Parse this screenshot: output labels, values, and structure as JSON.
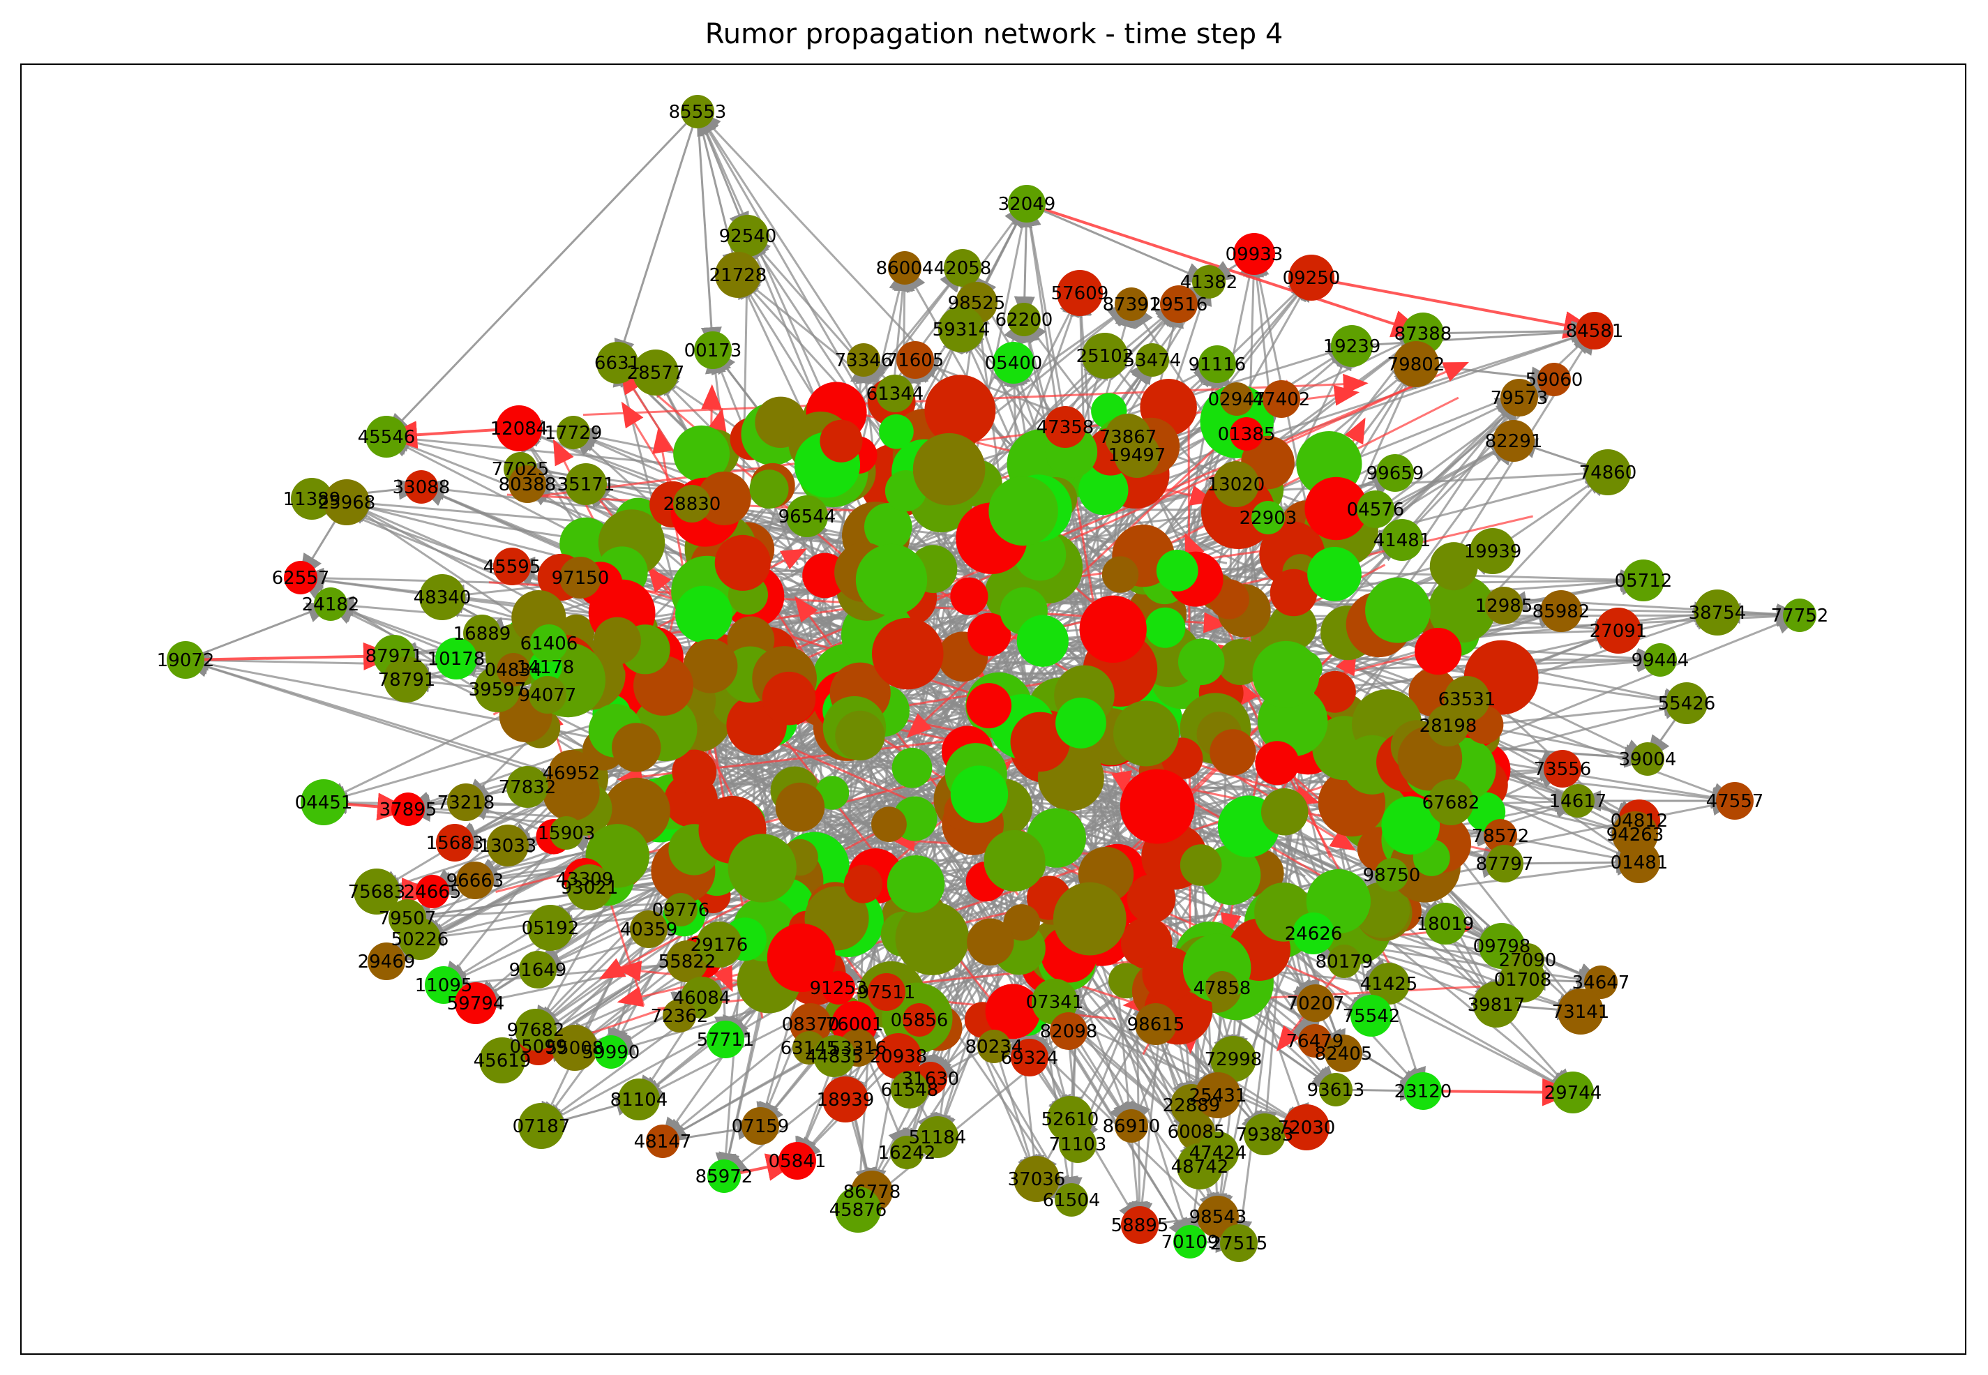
{
  "title": "Rumor propagation network - time step 4",
  "colors": {
    "edge": "#8c8c8c",
    "edge_active": "#ff3b3b",
    "frame": "#000000"
  },
  "node_palette": [
    "#16e00b",
    "#3fc005",
    "#5ea000",
    "#6f8c00",
    "#7f7a00",
    "#955f00",
    "#b34700",
    "#d32400",
    "#f90200"
  ],
  "nodes": [
    {
      "id": "85553",
      "label": "85553",
      "s": 3
    },
    {
      "id": "32049",
      "label": "32049",
      "s": 2
    },
    {
      "id": "92540",
      "label": "92540",
      "s": 3
    },
    {
      "id": "21728",
      "label": "21728",
      "s": 4
    },
    {
      "id": "86004",
      "label": "86004",
      "s": 5
    },
    {
      "id": "42058",
      "label": "42058",
      "s": 3
    },
    {
      "id": "09933",
      "label": "09933",
      "s": 8
    },
    {
      "id": "09250",
      "label": "09250",
      "s": 7
    },
    {
      "id": "41382",
      "label": "41382",
      "s": 3
    },
    {
      "id": "84581",
      "label": "84581",
      "s": 7
    },
    {
      "id": "87388",
      "label": "87388",
      "s": 2
    },
    {
      "id": "57609",
      "label": "57609",
      "s": 7
    },
    {
      "id": "87391",
      "label": "87391",
      "s": 5
    },
    {
      "id": "29516",
      "label": "29516",
      "s": 6
    },
    {
      "id": "98525",
      "label": "98525",
      "s": 4
    },
    {
      "id": "59314",
      "label": "59314",
      "s": 3
    },
    {
      "id": "62200",
      "label": "62200",
      "s": 3
    },
    {
      "id": "00173",
      "label": "00173",
      "s": 2
    },
    {
      "id": "19239",
      "label": "19239",
      "s": 2
    },
    {
      "id": "79802",
      "label": "79802",
      "s": 5
    },
    {
      "id": "59060",
      "label": "59060",
      "s": 6
    },
    {
      "id": "79573",
      "label": "79573",
      "s": 5
    },
    {
      "id": "6631",
      "label": "6631",
      "s": 3
    },
    {
      "id": "28577",
      "label": "28577",
      "s": 3
    },
    {
      "id": "73346",
      "label": "73346",
      "s": 4
    },
    {
      "id": "71605",
      "label": "71605",
      "s": 6
    },
    {
      "id": "05400",
      "label": "05400",
      "s": 0
    },
    {
      "id": "25102",
      "label": "25102",
      "s": 3
    },
    {
      "id": "53474",
      "label": "53474",
      "s": 3
    },
    {
      "id": "91116",
      "label": "91116",
      "s": 2
    },
    {
      "id": "45546",
      "label": "45546",
      "s": 2
    },
    {
      "id": "12084",
      "label": "12084",
      "s": 8
    },
    {
      "id": "17729",
      "label": "17729",
      "s": 3
    },
    {
      "id": "61344",
      "label": "61344",
      "s": 3
    },
    {
      "id": "47358",
      "label": "47358",
      "s": 7
    },
    {
      "id": "73867",
      "label": "73867",
      "s": 4
    },
    {
      "id": "02947",
      "label": "02947",
      "s": 5
    },
    {
      "id": "47402",
      "label": "47402",
      "s": 6
    },
    {
      "id": "82291",
      "label": "82291",
      "s": 5
    },
    {
      "id": "74860",
      "label": "74860",
      "s": 3
    },
    {
      "id": "77025",
      "label": "77025",
      "s": 3
    },
    {
      "id": "80388",
      "label": "80388",
      "s": 5
    },
    {
      "id": "35171",
      "label": "35171",
      "s": 3
    },
    {
      "id": "19497",
      "label": "19497",
      "s": 4
    },
    {
      "id": "01385",
      "label": "01385",
      "s": 8
    },
    {
      "id": "99659",
      "label": "99659",
      "s": 2
    },
    {
      "id": "11389",
      "label": "11389",
      "s": 3
    },
    {
      "id": "25968",
      "label": "25968",
      "s": 4
    },
    {
      "id": "33088",
      "label": "33088",
      "s": 7
    },
    {
      "id": "28830",
      "label": "28830",
      "s": 4
    },
    {
      "id": "96544",
      "label": "96544",
      "s": 2
    },
    {
      "id": "13020",
      "label": "13020",
      "s": 4
    },
    {
      "id": "22903",
      "label": "22903",
      "s": 1
    },
    {
      "id": "04576",
      "label": "04576",
      "s": 2
    },
    {
      "id": "41481",
      "label": "41481",
      "s": 2
    },
    {
      "id": "19939",
      "label": "19939",
      "s": 3
    },
    {
      "id": "62557",
      "label": "62557",
      "s": 8
    },
    {
      "id": "45595",
      "label": "45595",
      "s": 7
    },
    {
      "id": "97150",
      "label": "97150",
      "s": 5
    },
    {
      "id": "48340",
      "label": "48340",
      "s": 3
    },
    {
      "id": "24182",
      "label": "24182",
      "s": 2
    },
    {
      "id": "16889",
      "label": "16889",
      "s": 3
    },
    {
      "id": "05712",
      "label": "05712",
      "s": 2
    },
    {
      "id": "38754",
      "label": "38754",
      "s": 3
    },
    {
      "id": "77752",
      "label": "77752",
      "s": 2
    },
    {
      "id": "12985",
      "label": "12985",
      "s": 4
    },
    {
      "id": "85982",
      "label": "85982",
      "s": 5
    },
    {
      "id": "27091",
      "label": "27091",
      "s": 7
    },
    {
      "id": "99444",
      "label": "99444",
      "s": 2
    },
    {
      "id": "19072",
      "label": "19072",
      "s": 2
    },
    {
      "id": "87971",
      "label": "87971",
      "s": 2
    },
    {
      "id": "78791",
      "label": "78791",
      "s": 3
    },
    {
      "id": "14178",
      "label": "14178",
      "s": 0
    },
    {
      "id": "61406",
      "label": "61406",
      "s": 1
    },
    {
      "id": "10178",
      "label": "10178",
      "s": 0
    },
    {
      "id": "39597",
      "label": "39597",
      "s": 3
    },
    {
      "id": "04834",
      "label": "04834",
      "s": 5
    },
    {
      "id": "94077",
      "label": "94077",
      "s": 3
    },
    {
      "id": "55426",
      "label": "55426",
      "s": 3
    },
    {
      "id": "63531",
      "label": "63531",
      "s": 4
    },
    {
      "id": "39004",
      "label": "39004",
      "s": 3
    },
    {
      "id": "73556",
      "label": "73556",
      "s": 7
    },
    {
      "id": "28198",
      "label": "28198",
      "s": 4
    },
    {
      "id": "04451",
      "label": "04451",
      "s": 1
    },
    {
      "id": "37895",
      "label": "37895",
      "s": 8
    },
    {
      "id": "73218",
      "label": "73218",
      "s": 4
    },
    {
      "id": "77832",
      "label": "77832",
      "s": 3
    },
    {
      "id": "46952",
      "label": "46952",
      "s": 5
    },
    {
      "id": "14617",
      "label": "14617",
      "s": 3
    },
    {
      "id": "47557",
      "label": "47557",
      "s": 6
    },
    {
      "id": "04812",
      "label": "04812",
      "s": 7
    },
    {
      "id": "94263",
      "label": "94263",
      "s": 5
    },
    {
      "id": "15903",
      "label": "15903",
      "s": 3
    },
    {
      "id": "15683",
      "label": "15683",
      "s": 7
    },
    {
      "id": "13033",
      "label": "13033",
      "s": 4
    },
    {
      "id": "67682",
      "label": "67682",
      "s": 3
    },
    {
      "id": "78572",
      "label": "78572",
      "s": 6
    },
    {
      "id": "87797",
      "label": "87797",
      "s": 3
    },
    {
      "id": "01481",
      "label": "01481",
      "s": 5
    },
    {
      "id": "75683",
      "label": "75683",
      "s": 3
    },
    {
      "id": "24665",
      "label": "24665",
      "s": 8
    },
    {
      "id": "96663",
      "label": "96663",
      "s": 5
    },
    {
      "id": "43309",
      "label": "43309",
      "s": 8
    },
    {
      "id": "93021",
      "label": "93021",
      "s": 3
    },
    {
      "id": "98750",
      "label": "98750",
      "s": 2
    },
    {
      "id": "79507",
      "label": "79507",
      "s": 3
    },
    {
      "id": "50226",
      "label": "50226",
      "s": 3
    },
    {
      "id": "05192",
      "label": "05192",
      "s": 3
    },
    {
      "id": "09776",
      "label": "09776",
      "s": 3
    },
    {
      "id": "40359",
      "label": "40359",
      "s": 4
    },
    {
      "id": "18019",
      "label": "18019",
      "s": 2
    },
    {
      "id": "09798",
      "label": "09798",
      "s": 2
    },
    {
      "id": "27090",
      "label": "27090",
      "s": 3
    },
    {
      "id": "29469",
      "label": "29469",
      "s": 5
    },
    {
      "id": "24626",
      "label": "24626",
      "s": 0
    },
    {
      "id": "01708",
      "label": "01708",
      "s": 3
    },
    {
      "id": "34647",
      "label": "34647",
      "s": 5
    },
    {
      "id": "91649",
      "label": "91649",
      "s": 3
    },
    {
      "id": "55822",
      "label": "55822",
      "s": 4
    },
    {
      "id": "29176",
      "label": "29176",
      "s": 3
    },
    {
      "id": "80179",
      "label": "80179",
      "s": 3
    },
    {
      "id": "11095",
      "label": "11095",
      "s": 0
    },
    {
      "id": "59794",
      "label": "59794",
      "s": 8
    },
    {
      "id": "73141",
      "label": "73141",
      "s": 5
    },
    {
      "id": "91253",
      "label": "91253",
      "s": 8
    },
    {
      "id": "97511",
      "label": "97511",
      "s": 7
    },
    {
      "id": "46084",
      "label": "46084",
      "s": 3
    },
    {
      "id": "07341",
      "label": "07341",
      "s": 2
    },
    {
      "id": "47858",
      "label": "47858",
      "s": 4
    },
    {
      "id": "70207",
      "label": "70207",
      "s": 5
    },
    {
      "id": "41425",
      "label": "41425",
      "s": 3
    },
    {
      "id": "39817",
      "label": "39817",
      "s": 3
    },
    {
      "id": "72362",
      "label": "72362",
      "s": 4
    },
    {
      "id": "05099",
      "label": "05099",
      "s": 7
    },
    {
      "id": "97682",
      "label": "97682",
      "s": 3
    },
    {
      "id": "55008",
      "label": "55008",
      "s": 4
    },
    {
      "id": "59990",
      "label": "59990",
      "s": 0
    },
    {
      "id": "57711",
      "label": "57711",
      "s": 0
    },
    {
      "id": "08370",
      "label": "08370",
      "s": 6
    },
    {
      "id": "76001",
      "label": "76001",
      "s": 8
    },
    {
      "id": "05856",
      "label": "05856",
      "s": 7
    },
    {
      "id": "82098",
      "label": "82098",
      "s": 6
    },
    {
      "id": "98615",
      "label": "98615",
      "s": 5
    },
    {
      "id": "72998",
      "label": "72998",
      "s": 3
    },
    {
      "id": "76479",
      "label": "76479",
      "s": 6
    },
    {
      "id": "82405",
      "label": "82405",
      "s": 5
    },
    {
      "id": "75542",
      "label": "75542",
      "s": 0
    },
    {
      "id": "45619",
      "label": "45619",
      "s": 3
    },
    {
      "id": "63145",
      "label": "63145",
      "s": 4
    },
    {
      "id": "53316",
      "label": "53316",
      "s": 5
    },
    {
      "id": "44835",
      "label": "44835",
      "s": 3
    },
    {
      "id": "20938",
      "label": "20938",
      "s": 7
    },
    {
      "id": "80234",
      "label": "80234",
      "s": 4
    },
    {
      "id": "69324",
      "label": "69324",
      "s": 7
    },
    {
      "id": "81104",
      "label": "81104",
      "s": 3
    },
    {
      "id": "18939",
      "label": "18939",
      "s": 7
    },
    {
      "id": "31630",
      "label": "31630",
      "s": 7
    },
    {
      "id": "61548",
      "label": "61548",
      "s": 3
    },
    {
      "id": "22889",
      "label": "22889",
      "s": 4
    },
    {
      "id": "25431",
      "label": "25431",
      "s": 5
    },
    {
      "id": "93613",
      "label": "93613",
      "s": 3
    },
    {
      "id": "23120",
      "label": "23120",
      "s": 0
    },
    {
      "id": "29744",
      "label": "29744",
      "s": 2
    },
    {
      "id": "07187",
      "label": "07187",
      "s": 3
    },
    {
      "id": "48147",
      "label": "48147",
      "s": 6
    },
    {
      "id": "07159",
      "label": "07159",
      "s": 5
    },
    {
      "id": "51184",
      "label": "51184",
      "s": 3
    },
    {
      "id": "52610",
      "label": "52610",
      "s": 3
    },
    {
      "id": "86910",
      "label": "86910",
      "s": 5
    },
    {
      "id": "60085",
      "label": "60085",
      "s": 4
    },
    {
      "id": "79383",
      "label": "79383",
      "s": 3
    },
    {
      "id": "72030",
      "label": "72030",
      "s": 7
    },
    {
      "id": "16242",
      "label": "16242",
      "s": 3
    },
    {
      "id": "71103",
      "label": "71103",
      "s": 3
    },
    {
      "id": "47424",
      "label": "47424",
      "s": 3
    },
    {
      "id": "48742",
      "label": "48742",
      "s": 3
    },
    {
      "id": "85972",
      "label": "85972",
      "s": 0
    },
    {
      "id": "05841",
      "label": "05841",
      "s": 8
    },
    {
      "id": "86778",
      "label": "86778",
      "s": 5
    },
    {
      "id": "37036",
      "label": "37036",
      "s": 4
    },
    {
      "id": "61504",
      "label": "61504",
      "s": 3
    },
    {
      "id": "58895",
      "label": "58895",
      "s": 7
    },
    {
      "id": "98543",
      "label": "98543",
      "s": 5
    },
    {
      "id": "45876",
      "label": "45876",
      "s": 2
    },
    {
      "id": "70109",
      "label": "70109",
      "s": 0
    },
    {
      "id": "27515",
      "label": "27515",
      "s": 3
    }
  ],
  "edges": [
    [
      "85553",
      "92540"
    ],
    [
      "85553",
      "21728"
    ],
    [
      "85553",
      "00173"
    ],
    [
      "85553",
      "6631"
    ],
    [
      "85553",
      "45546"
    ],
    [
      "32049",
      "87388"
    ],
    [
      "32049",
      "41382"
    ],
    [
      "32049",
      "59314"
    ],
    [
      "32049",
      "62200"
    ],
    [
      "32049",
      "98525"
    ],
    [
      "09933",
      "41382"
    ],
    [
      "09250",
      "84581"
    ],
    [
      "87388",
      "84581"
    ],
    [
      "19239",
      "84581"
    ],
    [
      "79802",
      "59060"
    ],
    [
      "12084",
      "45546"
    ],
    [
      "17729",
      "12084"
    ],
    [
      "11389",
      "33088"
    ],
    [
      "25968",
      "62557"
    ],
    [
      "19072",
      "87971"
    ],
    [
      "19072",
      "24182"
    ],
    [
      "04451",
      "37895"
    ],
    [
      "75683",
      "24665"
    ],
    [
      "29469",
      "50226"
    ],
    [
      "11095",
      "59794"
    ],
    [
      "45619",
      "55008"
    ],
    [
      "07187",
      "81104"
    ],
    [
      "48147",
      "07159"
    ],
    [
      "85972",
      "05841"
    ],
    [
      "45876",
      "86778"
    ],
    [
      "37036",
      "61504"
    ],
    [
      "70109",
      "27515"
    ],
    [
      "58895",
      "98543"
    ],
    [
      "23120",
      "29744"
    ],
    [
      "93613",
      "23120"
    ],
    [
      "39817",
      "73141"
    ],
    [
      "34647",
      "01708"
    ],
    [
      "47557",
      "14617"
    ],
    [
      "77752",
      "38754"
    ],
    [
      "05712",
      "12985"
    ],
    [
      "74860",
      "82291"
    ],
    [
      "04812",
      "94263"
    ],
    [
      "55426",
      "39004"
    ],
    [
      "87797",
      "01481"
    ],
    [
      "27090",
      "09798"
    ]
  ],
  "active_edges": [
    [
      "32049",
      "87388"
    ],
    [
      "09250",
      "84581"
    ],
    [
      "19072",
      "87971"
    ],
    [
      "04451",
      "37895"
    ],
    [
      "75683",
      "24665"
    ],
    [
      "11095",
      "59794"
    ],
    [
      "85972",
      "05841"
    ],
    [
      "45876",
      "86778"
    ],
    [
      "23120",
      "29744"
    ],
    [
      "12084",
      "45546"
    ]
  ]
}
